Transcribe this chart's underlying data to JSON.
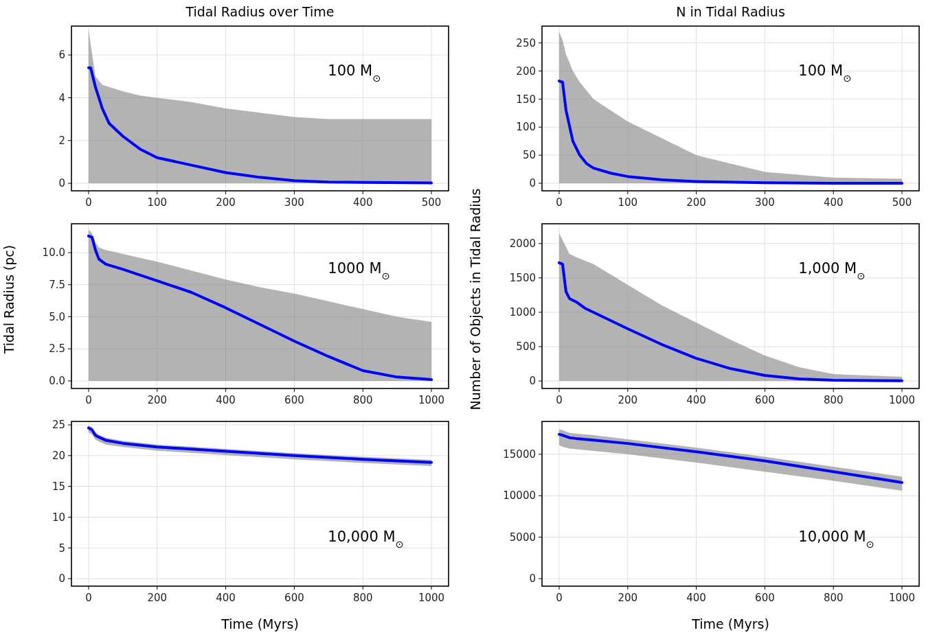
{
  "chart_data": [
    {
      "type": "line",
      "title": "Tidal Radius over Time",
      "x": [
        0,
        3,
        10,
        20,
        30,
        50,
        75,
        100,
        150,
        200,
        250,
        300,
        350,
        400,
        500
      ],
      "xlim": [
        -25,
        525
      ],
      "xticks": [
        0,
        100,
        200,
        300,
        400,
        500
      ],
      "ylim": [
        -0.35,
        7.35
      ],
      "yticks": [
        0,
        2,
        4,
        6
      ],
      "grid": true,
      "annotations": [
        "100 M$_{⊙}$"
      ],
      "series": [
        {
          "color": "#0000ff",
          "values": [
            5.4,
            5.4,
            4.5,
            3.5,
            2.8,
            2.2,
            1.6,
            1.2,
            0.85,
            0.5,
            0.28,
            0.12,
            0.06,
            0.04,
            0.02
          ],
          "lower": [
            0,
            0,
            0,
            0,
            0,
            0,
            0,
            0,
            0,
            0,
            0,
            0,
            0,
            0,
            0
          ],
          "upper": [
            7.2,
            6.5,
            5.0,
            4.6,
            4.5,
            4.3,
            4.1,
            4.0,
            3.8,
            3.5,
            3.3,
            3.1,
            3.0,
            3.0,
            3.0
          ]
        }
      ]
    },
    {
      "type": "line",
      "title": "N in Tidal Radius",
      "x": [
        0,
        5,
        10,
        20,
        30,
        40,
        50,
        75,
        100,
        150,
        200,
        300,
        400,
        500
      ],
      "xlim": [
        -25,
        525
      ],
      "xticks": [
        0,
        100,
        200,
        300,
        400,
        500
      ],
      "ylim": [
        -13.5,
        280
      ],
      "yticks": [
        0,
        50,
        100,
        150,
        200,
        250
      ],
      "grid": true,
      "annotations": [
        "100 M$_{⊙}$"
      ],
      "series": [
        {
          "color": "#0000ff",
          "values": [
            182,
            180,
            130,
            75,
            50,
            35,
            27,
            18,
            12,
            6,
            3,
            1,
            0,
            0
          ],
          "lower": [
            0,
            0,
            0,
            0,
            0,
            0,
            0,
            0,
            0,
            0,
            0,
            0,
            0,
            0
          ],
          "upper": [
            270,
            255,
            230,
            200,
            180,
            165,
            150,
            130,
            110,
            80,
            50,
            20,
            10,
            8
          ]
        }
      ]
    },
    {
      "type": "line",
      "x": [
        0,
        10,
        20,
        30,
        50,
        100,
        200,
        300,
        400,
        500,
        600,
        700,
        800,
        900,
        1000
      ],
      "xlim": [
        -50,
        1050
      ],
      "xticks": [
        0,
        200,
        400,
        600,
        800,
        1000
      ],
      "ylim": [
        -0.59,
        12.25
      ],
      "yticks": [
        {
          "value": 0,
          "label": "0.0"
        },
        {
          "value": 2.5,
          "label": "2.5"
        },
        {
          "value": 5,
          "label": "5.0"
        },
        {
          "value": 7.5,
          "label": "7.5"
        },
        {
          "value": 10,
          "label": "10.0"
        }
      ],
      "ylabel": "Tidal Radius (pc)",
      "grid": true,
      "annotations": [
        "1000 M$_{⊙}$"
      ],
      "series": [
        {
          "color": "#0000ff",
          "values": [
            11.3,
            11.2,
            10.2,
            9.5,
            9.1,
            8.7,
            7.8,
            6.9,
            5.7,
            4.4,
            3.1,
            1.9,
            0.8,
            0.3,
            0.1
          ],
          "lower": [
            0,
            0,
            0,
            0,
            0,
            0,
            0,
            0,
            0,
            0,
            0,
            0,
            0,
            0,
            0
          ],
          "upper": [
            11.8,
            11.5,
            10.8,
            10.4,
            10.2,
            9.9,
            9.3,
            8.6,
            7.9,
            7.3,
            6.8,
            6.2,
            5.6,
            5.0,
            4.6
          ]
        }
      ]
    },
    {
      "type": "line",
      "x": [
        0,
        10,
        20,
        30,
        50,
        75,
        100,
        200,
        300,
        400,
        500,
        600,
        700,
        800,
        1000
      ],
      "xlim": [
        -50,
        1050
      ],
      "xticks": [
        0,
        200,
        400,
        600,
        800,
        1000
      ],
      "ylim": [
        -109,
        2288
      ],
      "yticks": [
        0,
        500,
        1000,
        1500,
        2000
      ],
      "ylabel": "Number of Objects in Tidal Radius",
      "grid": true,
      "annotations": [
        "1,000 M$_{⊙}$"
      ],
      "series": [
        {
          "color": "#0000ff",
          "values": [
            1720,
            1700,
            1300,
            1200,
            1150,
            1060,
            1000,
            760,
            530,
            330,
            180,
            80,
            30,
            10,
            3
          ],
          "lower": [
            0,
            0,
            0,
            0,
            0,
            0,
            0,
            0,
            0,
            0,
            0,
            0,
            0,
            0,
            0
          ],
          "upper": [
            2150,
            2050,
            1950,
            1850,
            1800,
            1750,
            1700,
            1400,
            1100,
            850,
            600,
            370,
            200,
            100,
            60
          ]
        }
      ]
    },
    {
      "type": "line",
      "x": [
        0,
        10,
        20,
        30,
        50,
        100,
        200,
        400,
        600,
        800,
        1000
      ],
      "xlim": [
        -50,
        1050
      ],
      "xticks": [
        0,
        200,
        400,
        600,
        800,
        1000
      ],
      "ylim": [
        -1.22,
        25.56
      ],
      "yticks": [
        0,
        5,
        10,
        15,
        20,
        25
      ],
      "xlabel": "Time (Myrs)",
      "grid": true,
      "annotations": [
        "10,000 M$_{⊙}$"
      ],
      "series": [
        {
          "color": "#0000ff",
          "values": [
            24.5,
            24.2,
            23.3,
            23.0,
            22.5,
            22.0,
            21.4,
            20.7,
            20.0,
            19.4,
            18.9
          ],
          "lower": [
            23.8,
            23.4,
            22.6,
            22.3,
            21.8,
            21.4,
            20.8,
            20.1,
            19.4,
            18.8,
            18.3
          ],
          "upper": [
            24.9,
            24.6,
            23.8,
            23.4,
            22.9,
            22.4,
            21.8,
            21.1,
            20.4,
            19.8,
            19.3
          ]
        }
      ]
    },
    {
      "type": "line",
      "x": [
        0,
        10,
        30,
        50,
        100,
        200,
        400,
        600,
        800,
        1000
      ],
      "xlim": [
        -50,
        1050
      ],
      "xticks": [
        0,
        200,
        400,
        600,
        800,
        1000
      ],
      "ylim": [
        -907,
        18960
      ],
      "yticks": [
        0,
        5000,
        10000,
        15000
      ],
      "xlabel": "Time (Myrs)",
      "grid": true,
      "annotations": [
        "10,000 M$_{⊙}$"
      ],
      "series": [
        {
          "color": "#0000ff",
          "values": [
            17400,
            17300,
            17000,
            16900,
            16700,
            16300,
            15300,
            14200,
            12900,
            11600
          ],
          "lower": [
            16100,
            15900,
            15700,
            15600,
            15400,
            15000,
            14000,
            12900,
            11800,
            10600
          ],
          "upper": [
            18000,
            17900,
            17600,
            17500,
            17300,
            16800,
            15800,
            14700,
            13500,
            12300
          ]
        }
      ]
    }
  ]
}
